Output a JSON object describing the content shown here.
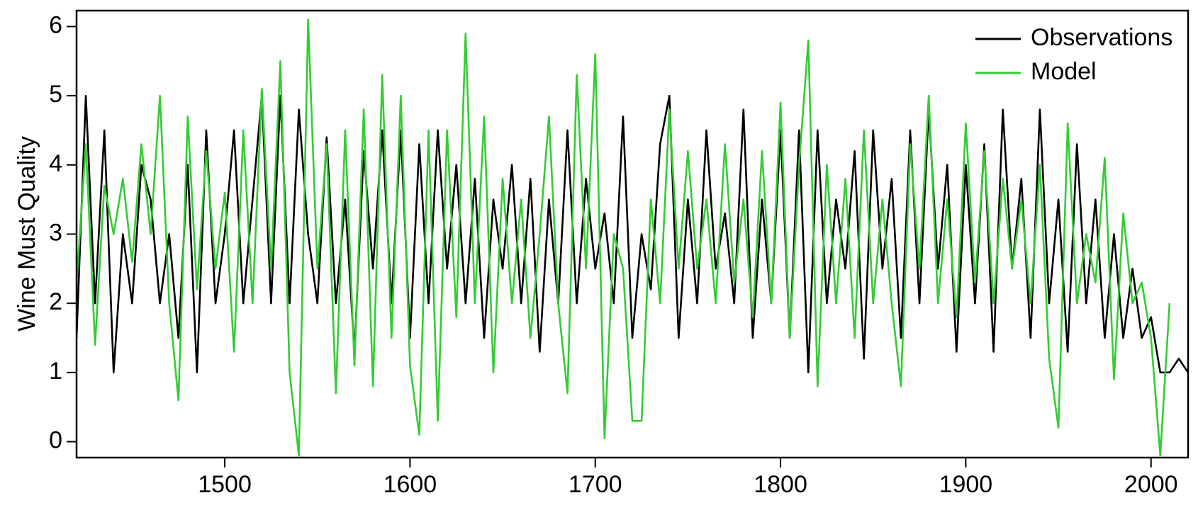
{
  "chart_data": {
    "type": "line",
    "y_label": "Wine Must Quality",
    "x": [
      1420,
      1425,
      1430,
      1435,
      1440,
      1445,
      1450,
      1455,
      1460,
      1465,
      1470,
      1475,
      1480,
      1485,
      1490,
      1495,
      1500,
      1505,
      1510,
      1515,
      1520,
      1525,
      1530,
      1535,
      1540,
      1545,
      1550,
      1555,
      1560,
      1565,
      1570,
      1575,
      1580,
      1585,
      1590,
      1595,
      1600,
      1605,
      1610,
      1615,
      1620,
      1625,
      1630,
      1635,
      1640,
      1645,
      1650,
      1655,
      1660,
      1665,
      1670,
      1675,
      1680,
      1685,
      1690,
      1695,
      1700,
      1705,
      1710,
      1715,
      1720,
      1725,
      1730,
      1735,
      1740,
      1745,
      1750,
      1755,
      1760,
      1765,
      1770,
      1775,
      1780,
      1785,
      1790,
      1795,
      1800,
      1805,
      1810,
      1815,
      1820,
      1825,
      1830,
      1835,
      1840,
      1845,
      1850,
      1855,
      1860,
      1865,
      1870,
      1875,
      1880,
      1885,
      1890,
      1895,
      1900,
      1905,
      1910,
      1915,
      1920,
      1925,
      1930,
      1935,
      1940,
      1945,
      1950,
      1955,
      1960,
      1965,
      1970,
      1975,
      1980,
      1985,
      1990,
      1995,
      2000,
      2005,
      2010,
      2015,
      2020
    ],
    "series": [
      {
        "name": "Observations",
        "color": "#000000",
        "values": [
          1.5,
          5.0,
          2.0,
          4.5,
          1.0,
          3.0,
          2.0,
          4.0,
          3.5,
          2.0,
          3.0,
          1.5,
          4.0,
          1.0,
          4.5,
          2.0,
          3.0,
          4.5,
          2.0,
          3.5,
          5.0,
          2.0,
          5.0,
          2.0,
          4.8,
          3.0,
          2.0,
          4.4,
          2.0,
          3.5,
          1.3,
          4.2,
          2.5,
          4.5,
          2.0,
          4.5,
          1.5,
          4.3,
          2.0,
          4.5,
          2.5,
          4.0,
          2.0,
          3.8,
          1.5,
          3.5,
          2.5,
          4.0,
          2.0,
          3.8,
          1.3,
          3.5,
          2.0,
          4.5,
          2.0,
          3.8,
          2.5,
          3.3,
          2.0,
          4.7,
          1.5,
          3.0,
          2.2,
          4.3,
          5.0,
          1.5,
          3.5,
          2.0,
          4.5,
          2.5,
          3.3,
          2.0,
          4.8,
          1.5,
          3.5,
          2.0,
          4.5,
          1.5,
          4.5,
          1.0,
          4.5,
          2.0,
          3.5,
          2.5,
          4.2,
          1.2,
          4.5,
          2.5,
          3.8,
          1.5,
          4.5,
          2.0,
          4.8,
          2.5,
          4.0,
          1.3,
          4.0,
          2.0,
          4.3,
          1.3,
          4.8,
          2.5,
          3.8,
          1.5,
          4.8,
          2.0,
          3.5,
          1.3,
          4.3,
          2.0,
          3.5,
          1.5,
          3.0,
          1.5,
          2.5,
          1.5,
          1.8,
          1.0,
          1.0,
          1.2,
          1.0
        ]
      },
      {
        "name": "Model",
        "color": "#33cc33",
        "values": [
          2.3,
          4.3,
          1.4,
          3.7,
          3.0,
          3.8,
          2.6,
          4.3,
          3.0,
          5.0,
          2.0,
          0.6,
          4.7,
          2.2,
          4.2,
          2.5,
          3.6,
          1.3,
          4.5,
          2.0,
          5.1,
          2.5,
          5.5,
          1.0,
          -0.2,
          6.1,
          2.5,
          4.3,
          0.7,
          4.5,
          1.1,
          4.8,
          0.8,
          5.3,
          1.5,
          5.0,
          1.1,
          0.1,
          4.5,
          0.3,
          4.5,
          1.8,
          5.9,
          2.0,
          4.7,
          1.0,
          3.8,
          2.0,
          3.5,
          1.5,
          3.0,
          4.7,
          2.0,
          0.7,
          5.3,
          2.5,
          5.6,
          0.05,
          3.0,
          2.5,
          0.3,
          0.3,
          3.5,
          2.0,
          4.8,
          2.5,
          4.2,
          2.5,
          3.5,
          2.0,
          4.3,
          2.3,
          3.5,
          1.8,
          4.2,
          2.0,
          4.9,
          1.5,
          4.0,
          5.8,
          0.8,
          4.0,
          2.0,
          3.8,
          1.5,
          4.5,
          2.0,
          3.5,
          2.0,
          0.8,
          4.3,
          2.5,
          5.0,
          2.0,
          3.5,
          1.8,
          4.6,
          2.3,
          4.2,
          2.0,
          3.8,
          2.5,
          3.5,
          2.0,
          4.0,
          1.2,
          0.2,
          4.6,
          2.0,
          3.0,
          2.3,
          4.1,
          0.9,
          3.3,
          2.0,
          2.3,
          1.5,
          -0.2,
          2.0,
          null,
          null
        ]
      }
    ],
    "xlim": [
      1420,
      2020
    ],
    "xticks": [
      1500,
      1600,
      1700,
      1800,
      1900,
      2000
    ],
    "ylim": [
      -0.23,
      6.23
    ],
    "yticks": [
      0,
      1,
      2,
      3,
      4,
      5,
      6
    ],
    "legend": "top-right"
  }
}
